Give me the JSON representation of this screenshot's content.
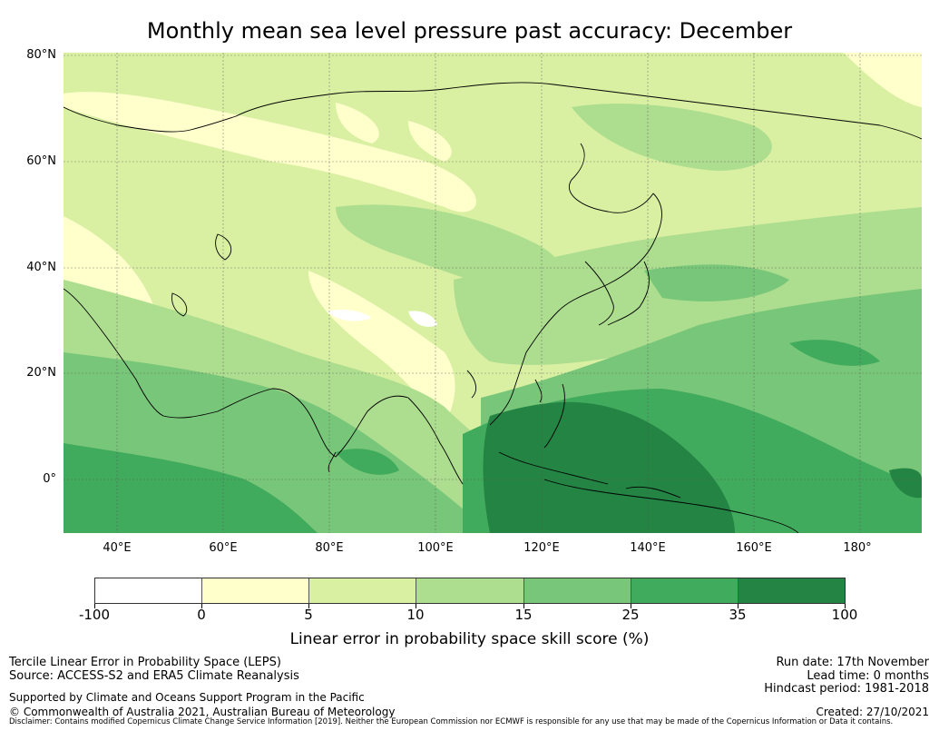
{
  "title": "Monthly mean sea level pressure past accuracy: December",
  "map": {
    "lat_labels": [
      "80°N",
      "60°N",
      "40°N",
      "20°N",
      "0°"
    ],
    "lon_labels": [
      "40°E",
      "60°E",
      "80°E",
      "100°E",
      "120°E",
      "140°E",
      "160°E",
      "180°"
    ],
    "extent": {
      "lon_min": 30,
      "lon_max": 191,
      "lat_min": -10,
      "lat_max": 80
    }
  },
  "colorbar": {
    "ticks": [
      "-100",
      "0",
      "5",
      "10",
      "15",
      "25",
      "35",
      "100"
    ],
    "colors": [
      "#ffffff",
      "#ffffcc",
      "#d9f0a3",
      "#addd8e",
      "#78c679",
      "#41ab5d",
      "#238443"
    ],
    "label": "Linear error in probability space skill score (%)"
  },
  "footer": {
    "left_line1": "Tercile Linear Error in Probability Space (LEPS)",
    "left_line2": "Source: ACCESS-S2 and ERA5 Climate Reanalysis",
    "left_line3": "Supported by Climate and Oceans Support Program in the Pacific",
    "left_line4": "© Commonwealth of Australia 2021, Australian Bureau of Meteorology",
    "right_line1": "Run date: 17th November",
    "right_line2": "Lead time: 0 months",
    "right_line3": "Hindcast period: 1981-2018",
    "right_line4": "Created: 27/10/2021",
    "disclaimer": "Disclaimer: Contains modified Copernicus Climate Change Service Information [2019]. Neither the European Commission nor ECMWF is responsible for any use that may be made of the Copernicus Information or Data it contains."
  }
}
